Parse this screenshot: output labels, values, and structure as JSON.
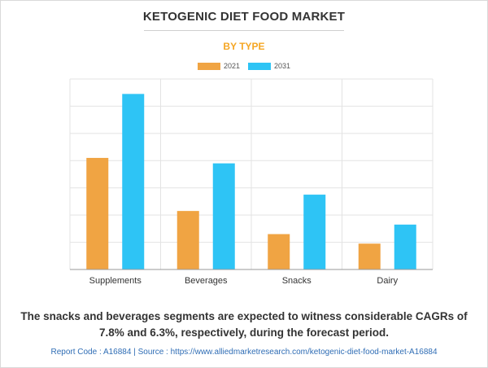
{
  "header": {
    "title": "KETOGENIC DIET FOOD MARKET",
    "subtitle": "BY TYPE"
  },
  "colors": {
    "series_2021": "#f0a443",
    "series_2031": "#2ec4f5",
    "grid": "#e3e3e3",
    "axis": "#999999"
  },
  "chart_data": {
    "type": "bar",
    "title": "KETOGENIC DIET FOOD MARKET",
    "subtitle": "BY TYPE",
    "categories": [
      "Supplements",
      "Beverages",
      "Snacks",
      "Dairy"
    ],
    "series": [
      {
        "name": "2021",
        "values": [
          4.1,
          2.15,
          1.3,
          0.95
        ]
      },
      {
        "name": "2031",
        "values": [
          6.45,
          3.9,
          2.75,
          1.65
        ]
      }
    ],
    "xlabel": "",
    "ylabel": "",
    "ylim": [
      0,
      7
    ],
    "gridlines": 7,
    "grid": true,
    "legend_position": "top-center"
  },
  "footer": {
    "caption": "The snacks and beverages segments are expected to witness considerable CAGRs of 7.8% and 6.3%, respectively, during the forecast period.",
    "source": "Report Code : A16884  |  Source : https://www.alliedmarketresearch.com/ketogenic-diet-food-market-A16884"
  }
}
